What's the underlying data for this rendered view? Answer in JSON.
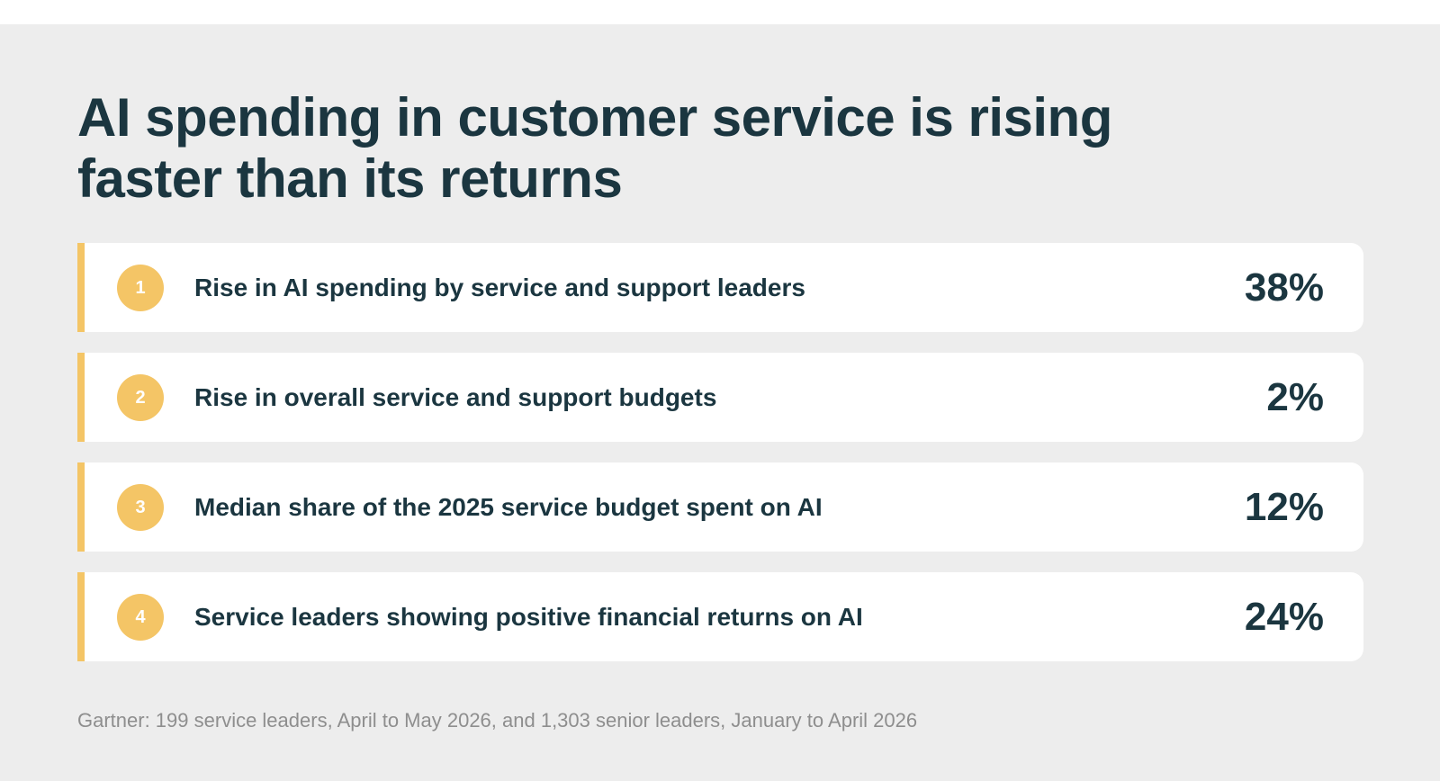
{
  "title": "AI spending in customer service is rising faster than its returns",
  "rows": [
    {
      "number": "1",
      "label": "Rise in AI spending by service and support leaders",
      "value": "38%"
    },
    {
      "number": "2",
      "label": "Rise in overall service and support budgets",
      "value": "2%"
    },
    {
      "number": "3",
      "label": "Median share of the 2025 service budget spent on AI",
      "value": "12%"
    },
    {
      "number": "4",
      "label": "Service leaders showing positive financial returns on AI",
      "value": "24%"
    }
  ],
  "source": "Gartner: 199 service leaders, April to May 2026, and 1,303 senior leaders, January to April 2026",
  "colors": {
    "accent": "#f4c566",
    "text": "#1b3640",
    "panel_background": "#ededed",
    "row_background": "#ffffff",
    "source_text": "#8e8e8e"
  }
}
